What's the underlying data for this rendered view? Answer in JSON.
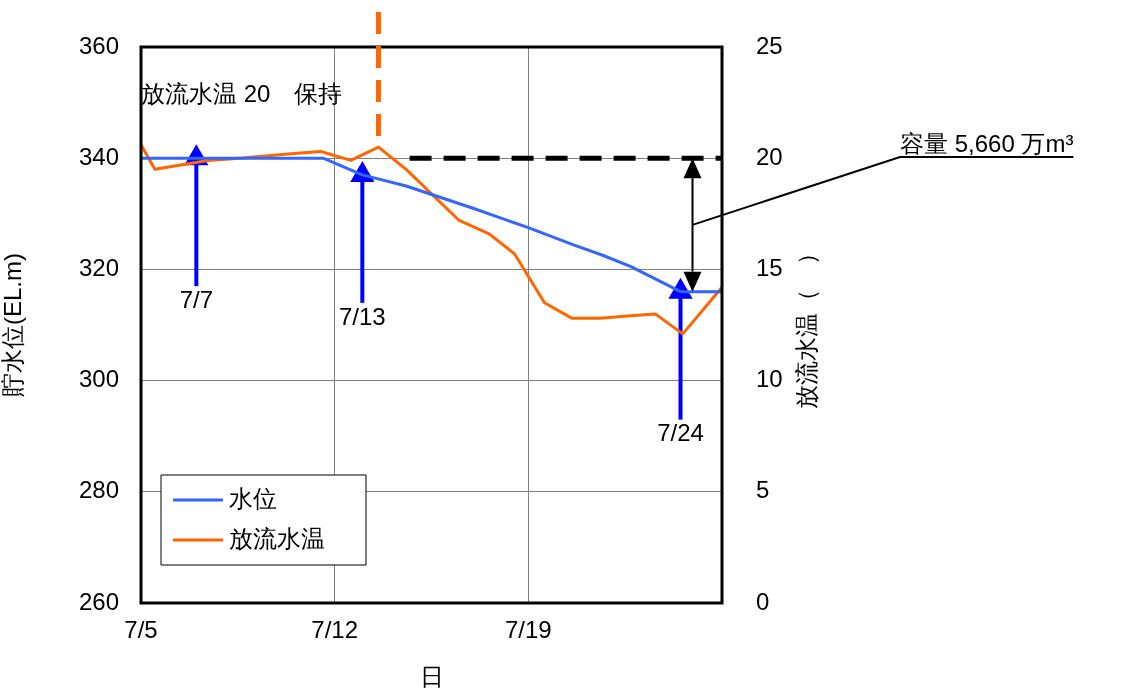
{
  "chart_data": {
    "type": "line",
    "xlabel": "日",
    "ylabel": "貯水位(EL.m)",
    "y2label": "放流水温（　）",
    "xlim": [
      "--07-05",
      "--07-26"
    ],
    "xticks": [
      {
        "value": "--07-05",
        "label": "7/5"
      },
      {
        "value": "--07-12",
        "label": "7/12"
      },
      {
        "value": "--07-19",
        "label": "7/19"
      }
    ],
    "ylim": [
      260,
      360
    ],
    "yticks": [
      260,
      280,
      300,
      320,
      340,
      360
    ],
    "y2lim": [
      0,
      25
    ],
    "y2ticks": [
      0,
      5,
      10,
      15,
      20,
      25
    ],
    "grid": true,
    "legend": "bottom left",
    "series": [
      {
        "name": "水位",
        "color": "#3366ff",
        "x": [
          "--07-05",
          "--07-11T14:00",
          "--07-13",
          "--07-14T14:00",
          "--07-17",
          "--07-19",
          "--07-20T14:00",
          "--07-21T17:00",
          "--07-22T17:00",
          "--07-24T12:00",
          "--07-26"
        ],
        "values": [
          340,
          340,
          337,
          335,
          331,
          327.5,
          324.5,
          322.5,
          320.5,
          316,
          316
        ]
      },
      {
        "name": "放流水温",
        "color": "#ff6600",
        "axis": "y2",
        "x": [
          "--07-05",
          "--07-05T12:00",
          "--07-07T10:00",
          "--07-08T14:00",
          "--07-10T10:00",
          "--07-11T12:00",
          "--07-12T14:00",
          "--07-13T14:00",
          "--07-14T14:00",
          "--07-16T12:00",
          "--07-17T14:00",
          "--07-18T12:00",
          "--07-19T14:00",
          "--07-20T14:00",
          "--07-21T14:00",
          "--07-22T14:00",
          "--07-23T14:00",
          "--07-24T14:00",
          "--07-26"
        ],
        "values": [
          20.6,
          19.5,
          19.9,
          20,
          20.2,
          20.3,
          19.9,
          20.5,
          19.5,
          17.2,
          16.6,
          15.7,
          13.5,
          12.8,
          12.8,
          12.9,
          13,
          12.1,
          14.2
        ]
      },
      {
        "color": "#000000",
        "line_style": "dashed",
        "x": [
          "--07-14T17:00",
          "--07-26"
        ],
        "values": [
          340,
          340
        ]
      },
      {
        "type": "scatter",
        "color": "#0000ff",
        "marker": "triangle",
        "x": [
          "--07-07",
          "--07-13",
          "--07-24T12:00"
        ],
        "values": [
          340,
          337,
          316
        ]
      }
    ],
    "ref_lines": [
      {
        "axis": "x",
        "value": "--07-13T14:00",
        "color": "#ff6600",
        "line_style": "dashed"
      }
    ],
    "annotations": [
      "放流水温 20　保持",
      {
        "text": "7/7",
        "x": "--07-07",
        "y": 340
      },
      {
        "text": "7/13",
        "x": "--07-13",
        "y": 337
      },
      {
        "text": "7/24",
        "x": "--07-24T12:00",
        "y": 316
      },
      "容量 5,660 万m³"
    ]
  }
}
